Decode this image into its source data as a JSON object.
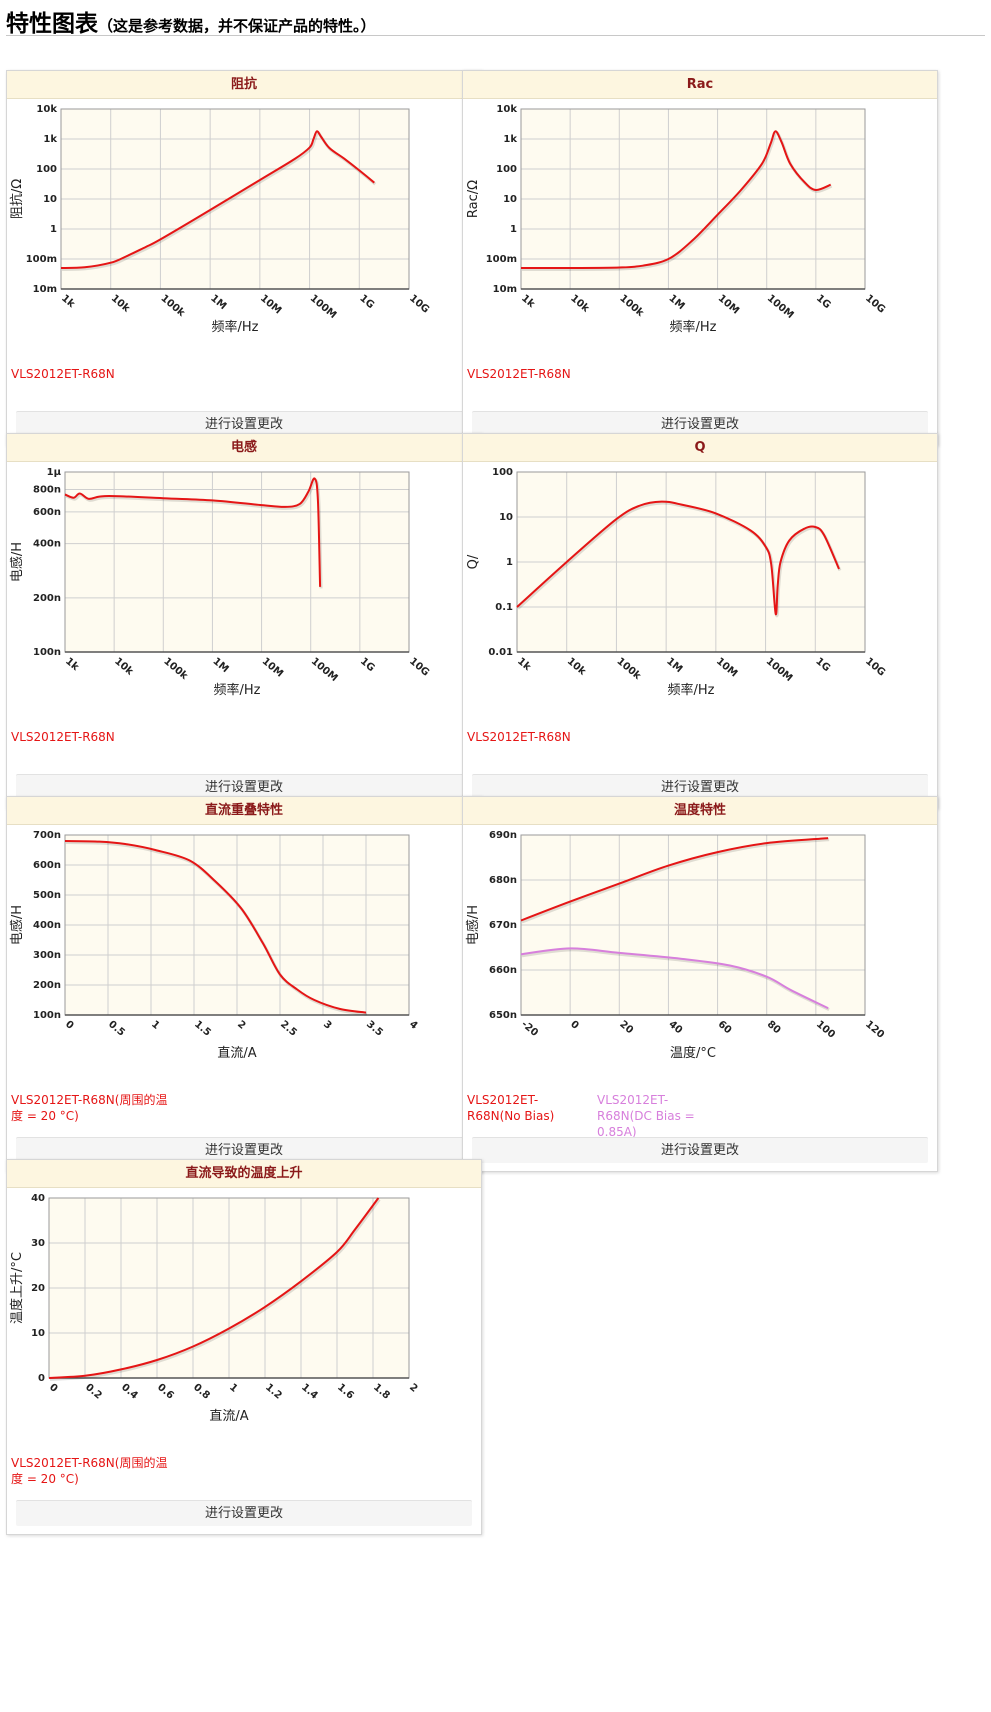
{
  "header": {
    "title": "特性图表",
    "subtitle": "（这是参考数据，并不保证产品的特性。）"
  },
  "colors": {
    "series_red": "#e51515",
    "series_violet": "#d77fdc",
    "header_bg": "#fdf6e0",
    "header_text": "#8b1a1a",
    "plot_bg": "#fefbf0",
    "grid": "#cfcfcf"
  },
  "panels": [
    {
      "title": "阻抗",
      "legend": [
        "VLS2012ET-R68N"
      ],
      "button": "进行设置更改",
      "chart_data": {
        "type": "line",
        "title": "阻抗",
        "xlabel": "频率/Hz",
        "ylabel": "阻抗/Ω",
        "xscale": "log",
        "yscale": "log",
        "xlim": [
          1000,
          10000000000
        ],
        "ylim": [
          0.01,
          10000
        ],
        "xticks": [
          1000,
          10000,
          100000,
          1000000,
          10000000,
          100000000,
          1000000000,
          10000000000
        ],
        "xtick_labels": [
          "1k",
          "10k",
          "100k",
          "1M",
          "10M",
          "100M",
          "1G",
          "10G"
        ],
        "yticks": [
          0.01,
          0.1,
          1,
          10,
          100,
          1000,
          10000
        ],
        "ytick_labels": [
          "10m",
          "100m",
          "1",
          "10",
          "100",
          "1k",
          "10k"
        ],
        "grid": true,
        "legend": "bottom",
        "series": [
          {
            "name": "VLS2012ET-R68N",
            "color": "#e51515",
            "x": [
              1000,
              3000,
              10000,
              20000,
              50000,
              100000,
              1000000,
              10000000,
              50000000,
              100000000,
              120000000,
              140000000,
              170000000,
              250000000,
              500000000,
              1000000000,
              2000000000
            ],
            "y": [
              0.05,
              0.053,
              0.075,
              0.12,
              0.25,
              0.45,
              4.3,
              43,
              215,
              520,
              1000,
              1800,
              1200,
              500,
              220,
              90,
              35
            ]
          }
        ]
      }
    },
    {
      "title": "Rac",
      "legend": [
        "VLS2012ET-R68N"
      ],
      "button": "进行设置更改",
      "chart_data": {
        "type": "line",
        "title": "Rac",
        "xlabel": "频率/Hz",
        "ylabel": "Rac/Ω",
        "xscale": "log",
        "yscale": "log",
        "xlim": [
          1000,
          10000000000
        ],
        "ylim": [
          0.01,
          10000
        ],
        "xticks": [
          1000,
          10000,
          100000,
          1000000,
          10000000,
          100000000,
          1000000000,
          10000000000
        ],
        "xtick_labels": [
          "1k",
          "10k",
          "100k",
          "1M",
          "10M",
          "100M",
          "1G",
          "10G"
        ],
        "yticks": [
          0.01,
          0.1,
          1,
          10,
          100,
          1000,
          10000
        ],
        "ytick_labels": [
          "10m",
          "100m",
          "1",
          "10",
          "100",
          "1k",
          "10k"
        ],
        "grid": true,
        "legend": "bottom",
        "series": [
          {
            "name": "VLS2012ET-R68N",
            "color": "#e51515",
            "x": [
              1000,
              10000,
              100000,
              300000,
              1000000,
              3000000,
              10000000,
              30000000,
              80000000,
              120000000,
              150000000,
              200000000,
              300000000,
              600000000,
              1000000000,
              2000000000
            ],
            "y": [
              0.05,
              0.05,
              0.052,
              0.06,
              0.1,
              0.4,
              3,
              20,
              150,
              700,
              1800,
              800,
              150,
              35,
              20,
              30
            ]
          }
        ]
      }
    },
    {
      "title": "电感",
      "legend": [
        "VLS2012ET-R68N"
      ],
      "button": "进行设置更改",
      "chart_data": {
        "type": "line",
        "title": "电感",
        "xlabel": "频率/Hz",
        "ylabel": "电感/H",
        "xscale": "log",
        "yscale": "log",
        "xlim": [
          1000,
          10000000000
        ],
        "ylim": [
          1e-07,
          1e-06
        ],
        "xticks": [
          1000,
          10000,
          100000,
          1000000,
          10000000,
          100000000,
          1000000000,
          10000000000
        ],
        "xtick_labels": [
          "1k",
          "10k",
          "100k",
          "1M",
          "10M",
          "100M",
          "1G",
          "10G"
        ],
        "yticks": [
          1e-07,
          2e-07,
          4e-07,
          6e-07,
          8e-07,
          1e-06
        ],
        "ytick_labels": [
          "100n",
          "200n",
          "400n",
          "600n",
          "800n",
          "1μ"
        ],
        "grid": true,
        "legend": "bottom",
        "series": [
          {
            "name": "VLS2012ET-R68N",
            "color": "#e51515",
            "x": [
              1000,
              1500,
              2000,
              3000,
              5000,
              10000,
              100000,
              1000000,
              10000000,
              30000000,
              60000000,
              90000000,
              120000000,
              140000000,
              155000000
            ],
            "y": [
              7.5e-07,
              7.2e-07,
              7.6e-07,
              7.1e-07,
              7.3e-07,
              7.35e-07,
              7.15e-07,
              6.95e-07,
              6.55e-07,
              6.4e-07,
              6.65e-07,
              7.8e-07,
              9.2e-07,
              7e-07,
              2.3e-07
            ]
          }
        ]
      }
    },
    {
      "title": "Q",
      "legend": [
        "VLS2012ET-R68N"
      ],
      "button": "进行设置更改",
      "chart_data": {
        "type": "line",
        "title": "Q",
        "xlabel": "频率/Hz",
        "ylabel": "Q/",
        "xscale": "log",
        "yscale": "log",
        "xlim": [
          1000,
          10000000000
        ],
        "ylim": [
          0.01,
          100
        ],
        "xticks": [
          1000,
          10000,
          100000,
          1000000,
          10000000,
          100000000,
          1000000000,
          10000000000
        ],
        "xtick_labels": [
          "1k",
          "10k",
          "100k",
          "1M",
          "10M",
          "100M",
          "1G",
          "10G"
        ],
        "yticks": [
          0.01,
          0.1,
          1,
          10,
          100
        ],
        "ytick_labels": [
          "0.01",
          "0.1",
          "1",
          "10",
          "100"
        ],
        "grid": true,
        "legend": "bottom",
        "series": [
          {
            "name": "VLS2012ET-R68N",
            "color": "#e51515",
            "x": [
              1000,
              10000,
              100000,
              300000,
              800000,
              2000000,
              10000000,
              50000000,
              100000000,
              130000000,
              160000000,
              175000000,
              200000000,
              300000000,
              600000000,
              1000000000,
              1500000000,
              3000000000
            ],
            "y": [
              0.1,
              1,
              9,
              18,
              22,
              19,
              12,
              5,
              2.2,
              0.9,
              0.07,
              0.3,
              1,
              3,
              5.5,
              6,
              4,
              0.7
            ]
          }
        ]
      }
    },
    {
      "title": "直流重叠特性",
      "legend": [
        "VLS2012ET-R68N(周围的温度 = 20 °C)"
      ],
      "button": "进行设置更改",
      "chart_data": {
        "type": "line",
        "title": "直流重叠特性",
        "xlabel": "直流/A",
        "ylabel": "电感/H",
        "xlim": [
          0,
          4
        ],
        "ylim": [
          1e-07,
          7e-07
        ],
        "xticks": [
          0,
          0.5,
          1,
          1.5,
          2,
          2.5,
          3,
          3.5,
          4
        ],
        "xtick_labels": [
          "0",
          "0.5",
          "1",
          "1.5",
          "2",
          "2.5",
          "3",
          "3.5",
          "4"
        ],
        "yticks": [
          1e-07,
          2e-07,
          3e-07,
          4e-07,
          5e-07,
          6e-07,
          7e-07
        ],
        "ytick_labels": [
          "100n",
          "200n",
          "300n",
          "400n",
          "500n",
          "600n",
          "700n"
        ],
        "grid": true,
        "legend": "bottom",
        "series": [
          {
            "name": "VLS2012ET-R68N(周围的温度 = 20 °C)",
            "color": "#e51515",
            "x": [
              0,
              0.4,
              0.7,
              1.05,
              1.45,
              1.75,
              2.05,
              2.3,
              2.5,
              2.7,
              2.9,
              3.2,
              3.5
            ],
            "y": [
              6.8e-07,
              6.78e-07,
              6.7e-07,
              6.5e-07,
              6.15e-07,
              5.45e-07,
              4.55e-07,
              3.4e-07,
              2.35e-07,
              1.85e-07,
              1.5e-07,
              1.2e-07,
              1.08e-07
            ]
          }
        ]
      }
    },
    {
      "title": "温度特性",
      "legend": [
        "VLS2012ET-R68N(No Bias)",
        "VLS2012ET-R68N(DC Bias = 0.85A)"
      ],
      "button": "进行设置更改",
      "chart_data": {
        "type": "line",
        "title": "温度特性",
        "xlabel": "温度/°C",
        "ylabel": "电感/H",
        "xlim": [
          -20,
          120
        ],
        "ylim": [
          6.5e-07,
          6.9e-07
        ],
        "xticks": [
          -20,
          0,
          20,
          40,
          60,
          80,
          100,
          120
        ],
        "xtick_labels": [
          "-20",
          "0",
          "20",
          "40",
          "60",
          "80",
          "100",
          "120"
        ],
        "yticks": [
          6.5e-07,
          6.6e-07,
          6.7e-07,
          6.8e-07,
          6.9e-07
        ],
        "ytick_labels": [
          "650n",
          "660n",
          "670n",
          "680n",
          "690n"
        ],
        "grid": true,
        "legend": "bottom",
        "series": [
          {
            "name": "VLS2012ET-R68N(No Bias)",
            "color": "#e51515",
            "x": [
              -20,
              0,
              20,
              40,
              60,
              80,
              105
            ],
            "y": [
              6.71e-07,
              6.752e-07,
              6.792e-07,
              6.832e-07,
              6.862e-07,
              6.882e-07,
              6.893e-07
            ]
          },
          {
            "name": "VLS2012ET-R68N(DC Bias = 0.85A)",
            "color": "#d77fdc",
            "x": [
              -20,
              0,
              20,
              45,
              65,
              80,
              90,
              105
            ],
            "y": [
              6.635e-07,
              6.648e-07,
              6.638e-07,
              6.625e-07,
              6.61e-07,
              6.585e-07,
              6.555e-07,
              6.515e-07
            ]
          }
        ]
      }
    },
    {
      "title": "直流导致的温度上升",
      "legend": [
        "VLS2012ET-R68N(周围的温度 = 20 °C)"
      ],
      "button": "进行设置更改",
      "chart_data": {
        "type": "line",
        "title": "直流导致的温度上升",
        "xlabel": "直流/A",
        "ylabel": "温度上升/°C",
        "xlim": [
          0,
          2
        ],
        "ylim": [
          0,
          40
        ],
        "xticks": [
          0,
          0.2,
          0.4,
          0.6,
          0.8,
          1,
          1.2,
          1.4,
          1.6,
          1.8,
          2
        ],
        "xtick_labels": [
          "0",
          "0.2",
          "0.4",
          "0.6",
          "0.8",
          "1",
          "1.2",
          "1.4",
          "1.6",
          "1.8",
          "2"
        ],
        "yticks": [
          0,
          10,
          20,
          30,
          40
        ],
        "ytick_labels": [
          "0",
          "10",
          "20",
          "30",
          "40"
        ],
        "grid": true,
        "legend": "bottom",
        "series": [
          {
            "name": "VLS2012ET-R68N(周围的温度 = 20 °C)",
            "color": "#e51515",
            "x": [
              0,
              0.2,
              0.4,
              0.6,
              0.8,
              1.0,
              1.2,
              1.4,
              1.6,
              1.7,
              1.83
            ],
            "y": [
              0,
              0.5,
              1.9,
              4,
              7,
              11,
              15.8,
              21.5,
              28,
              33,
              40
            ]
          }
        ]
      }
    }
  ]
}
